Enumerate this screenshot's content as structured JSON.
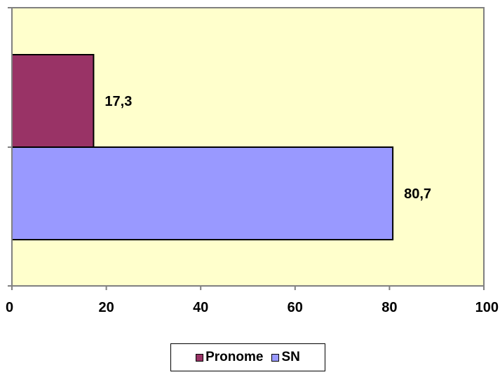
{
  "chart_data": {
    "type": "bar",
    "orientation": "horizontal",
    "title": "",
    "xlabel": "",
    "ylabel": "",
    "xlim": [
      0,
      100
    ],
    "x_ticks": [
      0,
      20,
      40,
      60,
      80,
      100
    ],
    "x_tick_labels": [
      "0",
      "20",
      "40",
      "60",
      "80",
      "100"
    ],
    "grid": false,
    "legend_position": "bottom",
    "series": [
      {
        "name": "Pronome",
        "values": [
          17.3
        ],
        "value_label": "17,3",
        "color": "#993366"
      },
      {
        "name": "SN",
        "values": [
          80.7
        ],
        "value_label": "80,7",
        "color": "#9999ff"
      }
    ],
    "colors": {
      "plot_background": "#ffffcc",
      "axis": "#808080",
      "bar_border": "#000000"
    }
  }
}
